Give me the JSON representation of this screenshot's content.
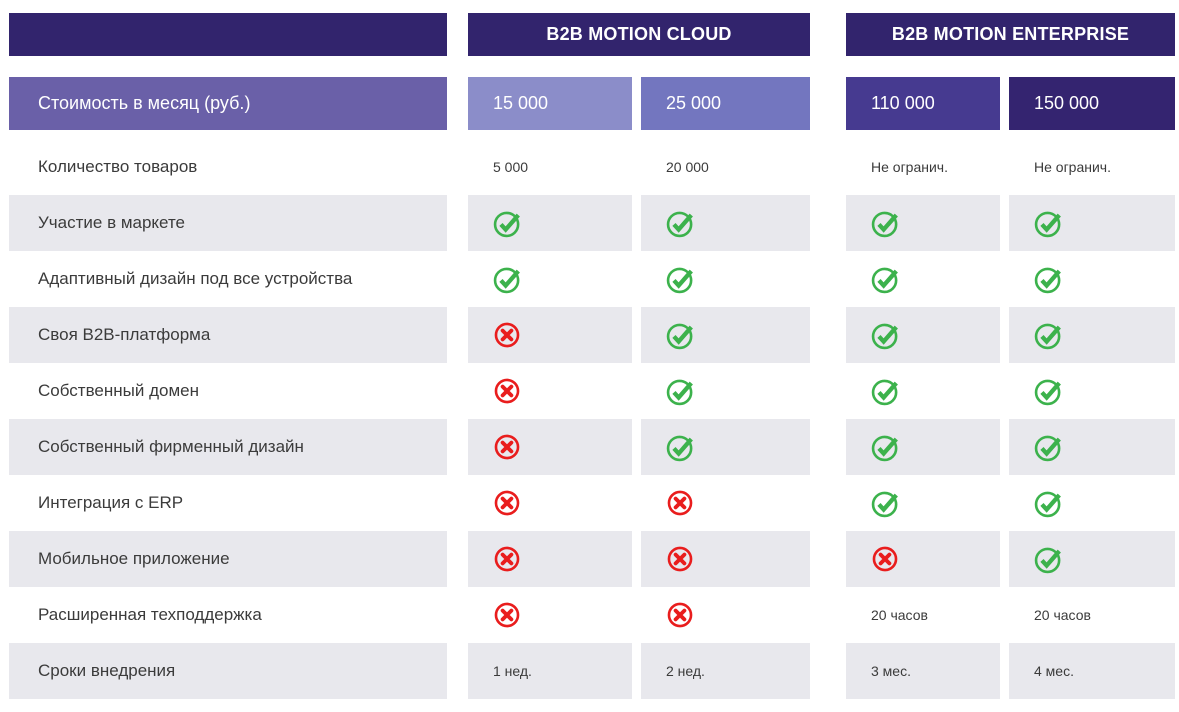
{
  "colors": {
    "header_bg": "#32246d",
    "price_label_bg": "#6a60a8",
    "price_tier_1": "#8b8dc9",
    "price_tier_2": "#7376bf",
    "price_tier_3": "#463a90",
    "price_tier_4": "#342470",
    "row_alt_bg": "#e8e8ed",
    "check_green": "#3cb24c",
    "cross_red": "#e91d1d"
  },
  "icons": {
    "check": "check-icon",
    "cross": "cross-icon"
  },
  "table": {
    "groups": [
      {
        "label": "B2B MOTION CLOUD"
      },
      {
        "label": "B2B MOTION ENTERPRISE"
      }
    ],
    "price_row": {
      "label": "Стоимость в месяц (руб.)",
      "prices": [
        "15 000",
        "25 000",
        "110 000",
        "150 000"
      ]
    },
    "rows": [
      {
        "label": "Количество товаров",
        "cells": [
          "5 000",
          "20 000",
          "Не огранич.",
          "Не огранич."
        ]
      },
      {
        "label": "Участие в маркете",
        "cells": [
          "check",
          "check",
          "check",
          "check"
        ]
      },
      {
        "label": "Адаптивный дизайн под все устройства",
        "cells": [
          "check",
          "check",
          "check",
          "check"
        ]
      },
      {
        "label": "Своя B2B-платформа",
        "cells": [
          "cross",
          "check",
          "check",
          "check"
        ]
      },
      {
        "label": "Собственный домен",
        "cells": [
          "cross",
          "check",
          "check",
          "check"
        ]
      },
      {
        "label": "Собственный фирменный дизайн",
        "cells": [
          "cross",
          "check",
          "check",
          "check"
        ]
      },
      {
        "label": "Интеграция с ERP",
        "cells": [
          "cross",
          "cross",
          "check",
          "check"
        ]
      },
      {
        "label": "Мобильное приложение",
        "cells": [
          "cross",
          "cross",
          "cross",
          "check"
        ]
      },
      {
        "label": "Расширенная техподдержка",
        "cells": [
          "cross",
          "cross",
          "20 часов",
          "20 часов"
        ]
      },
      {
        "label": "Сроки внедрения",
        "cells": [
          "1 нед.",
          "2 нед.",
          "3 мес.",
          "4 мес."
        ]
      }
    ]
  }
}
